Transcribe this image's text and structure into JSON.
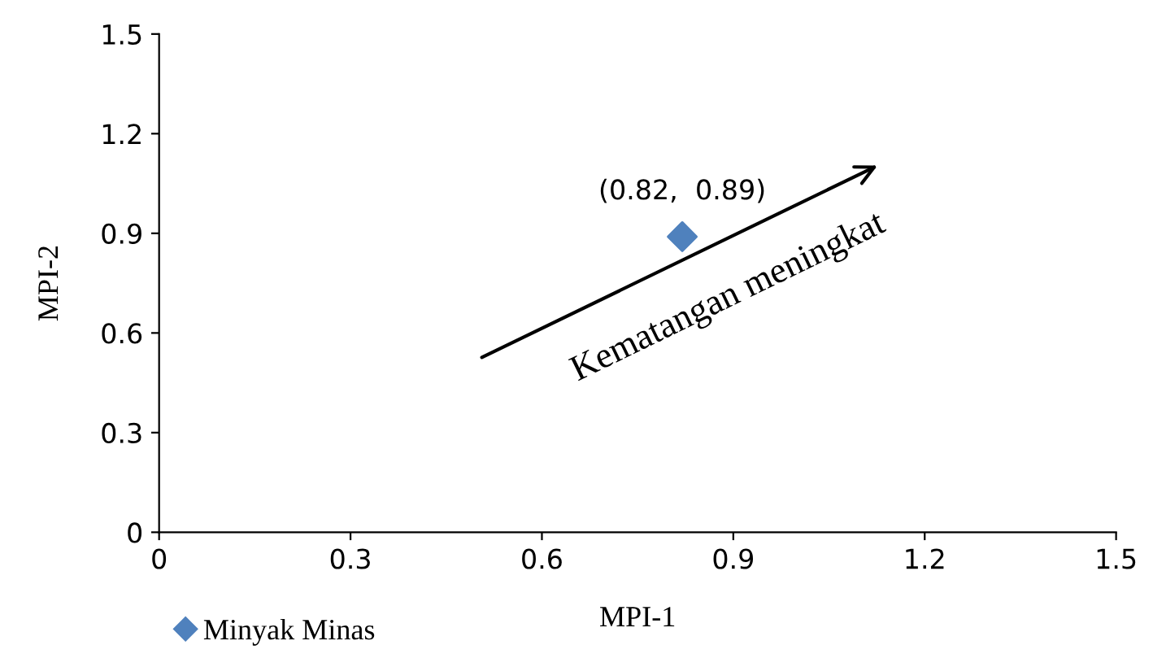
{
  "chart_data": {
    "type": "scatter",
    "xlabel": "MPI-1",
    "ylabel": "MPI-2",
    "series": [
      {
        "name": "Minyak Minas",
        "color": "#4f81bd",
        "x": [
          0.82
        ],
        "values": [
          0.89
        ]
      }
    ],
    "marker": "diamond",
    "xlim": [
      0,
      1.5
    ],
    "ylim": [
      0,
      1.5
    ],
    "xticks": [
      0,
      0.3,
      0.6,
      0.9,
      1.2,
      1.5
    ],
    "yticks": [
      0,
      0.3,
      0.6,
      0.9,
      1.2,
      1.5
    ],
    "grid": false,
    "legend": "bottom left",
    "annotations": [
      {
        "text": "(0.82,  0.89)",
        "x": 0.82,
        "y": 0.89
      },
      "Kematangan meningkat"
    ]
  }
}
